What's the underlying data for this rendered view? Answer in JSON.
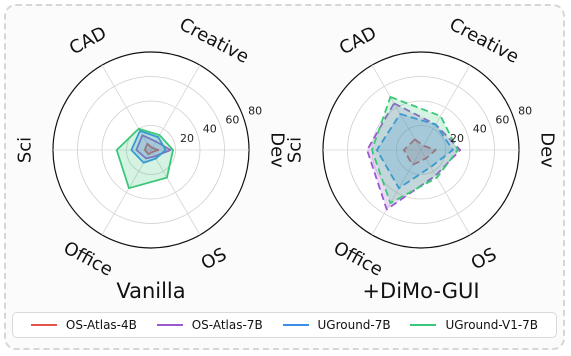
{
  "chart_data": [
    {
      "type": "radar",
      "title": "Vanilla",
      "categories": [
        "CAD",
        "Creative",
        "Dev",
        "OS",
        "Office",
        "Sci"
      ],
      "rlim": [
        0,
        80
      ],
      "rticks": [
        "20",
        "40",
        "60",
        "80"
      ],
      "grid": true,
      "series": [
        {
          "name": "OS-Atlas-4B",
          "color": "#e5534b",
          "values": [
            6,
            2,
            6,
            2,
            4,
            5
          ]
        },
        {
          "name": "OS-Atlas-7B",
          "color": "#9b59d0",
          "values": [
            14,
            8,
            16,
            6,
            8,
            12
          ]
        },
        {
          "name": "UGround-7B",
          "color": "#3a8ee6",
          "values": [
            18,
            12,
            12,
            8,
            12,
            16
          ]
        },
        {
          "name": "UGround-V1-7B",
          "color": "#3cc87a",
          "values": [
            20,
            14,
            18,
            26,
            36,
            28
          ]
        }
      ]
    },
    {
      "type": "radar",
      "title": "+DiMo-GUI",
      "categories": [
        "CAD",
        "Creative",
        "Dev",
        "OS",
        "Office",
        "Sci"
      ],
      "rlim": [
        0,
        80
      ],
      "rticks": [
        "20",
        "40",
        "60",
        "80"
      ],
      "grid": true,
      "series": [
        {
          "name": "OS-Atlas-4B",
          "color": "#e5534b",
          "values": [
            10,
            4,
            12,
            8,
            14,
            14
          ]
        },
        {
          "name": "OS-Atlas-7B",
          "color": "#9b59d0",
          "values": [
            44,
            24,
            32,
            24,
            56,
            44
          ]
        },
        {
          "name": "UGround-7B",
          "color": "#3a8ee6",
          "values": [
            34,
            24,
            26,
            16,
            36,
            36
          ]
        },
        {
          "name": "UGround-V1-7B",
          "color": "#3cc87a",
          "values": [
            50,
            32,
            30,
            26,
            50,
            40
          ]
        }
      ]
    }
  ],
  "legend": {
    "placement": "bottom"
  }
}
